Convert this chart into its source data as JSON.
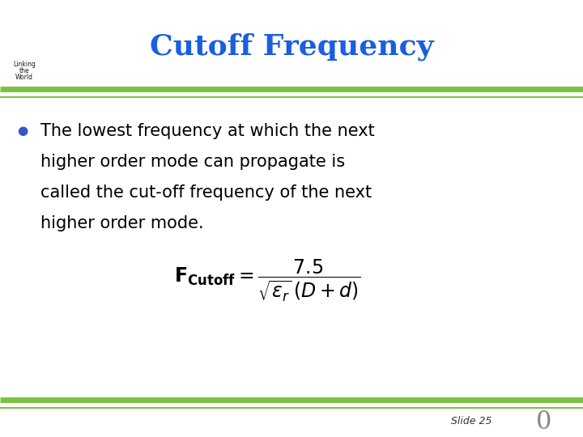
{
  "title": "Cutoff Frequency",
  "title_color": "#1a5fe0",
  "title_fontsize": 26,
  "background_color": "#ffffff",
  "top_line_color": "#7dc242",
  "bottom_line_color": "#7dc242",
  "bullet_color": "#3355cc",
  "bullet_text_line1": "The lowest frequency at which the next",
  "bullet_text_line2": "higher order mode can propagate is",
  "bullet_text_line3": "called the cut-off frequency of the next",
  "bullet_text_line4": "higher order mode.",
  "bullet_fontsize": 15,
  "formula_fontsize": 17,
  "slide_label": "Slide 25",
  "slide_label_fontsize": 9,
  "zero_fontsize": 22,
  "zero_color": "#888888"
}
